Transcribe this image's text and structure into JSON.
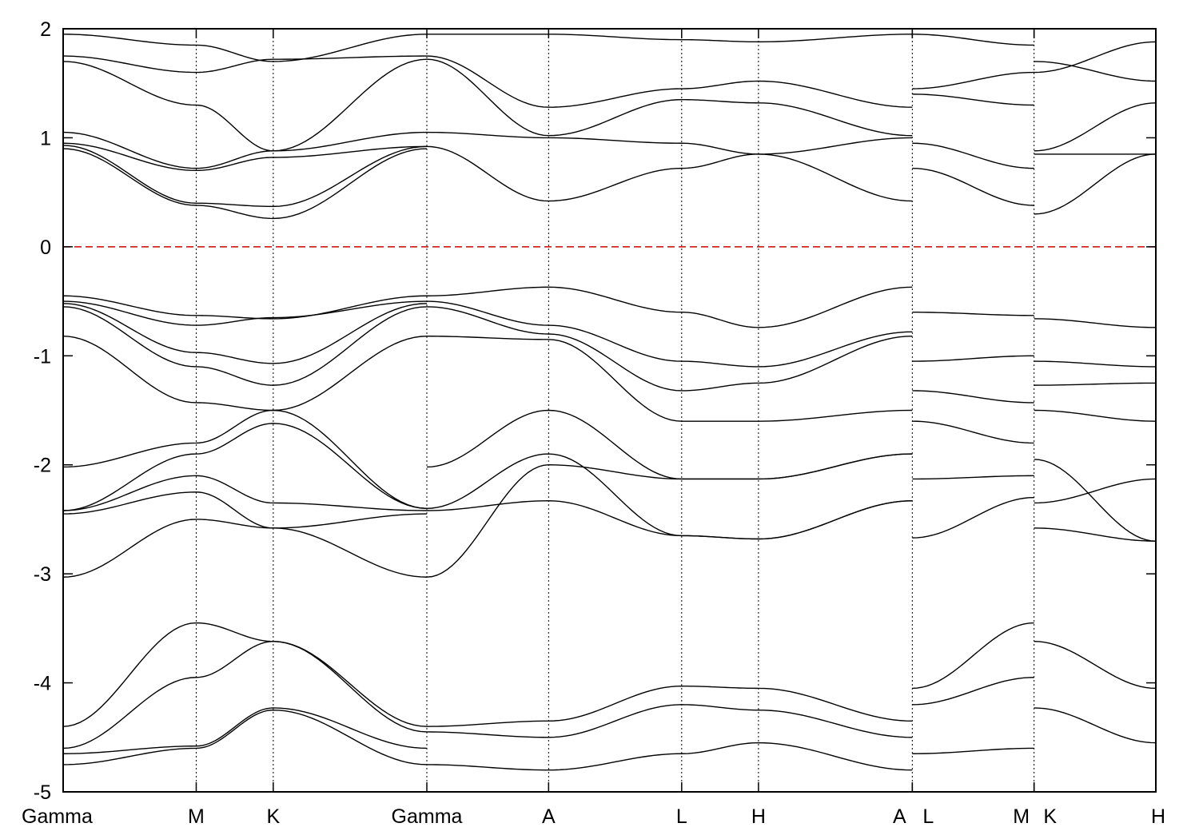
{
  "chart_data": {
    "type": "line",
    "title": "",
    "xlabel": "",
    "ylabel": "",
    "ylim": [
      -5,
      2
    ],
    "yticks": [
      "2",
      "1",
      "0",
      "-1",
      "-2",
      "-3",
      "-4",
      "-5"
    ],
    "ytick_values": [
      2,
      1,
      0,
      -1,
      -2,
      -3,
      -4,
      -5
    ],
    "fermi_level": 0,
    "fermi_color": "#d40000",
    "line_color": "#000000",
    "kpath": [
      {
        "label": "Gamma",
        "x": 0
      },
      {
        "label": "M",
        "x": 0.577
      },
      {
        "label": "K",
        "x": 0.911
      },
      {
        "label": "Gamma",
        "x": 1.577
      },
      {
        "label": "A",
        "x": 2.105
      },
      {
        "label": "L",
        "x": 2.682
      },
      {
        "label": "H",
        "x": 3.015
      },
      {
        "label": "A",
        "x": 3.682
      },
      {
        "label": "L",
        "x": 3.682
      },
      {
        "label": "M",
        "x": 4.21
      },
      {
        "label": "K",
        "x": 4.21
      },
      {
        "label": "H",
        "x": 4.738
      }
    ],
    "tick_labels": [
      "Gamma",
      "M",
      "K",
      "Gamma",
      "A",
      "L",
      "H",
      "A",
      "L",
      "M",
      "K",
      "H"
    ],
    "segments": [
      {
        "x_start": 0,
        "x_end": 1.577,
        "x": [
          0,
          0.577,
          0.911,
          1.577
        ],
        "bands": [
          [
            1.95,
            1.85,
            1.7,
            1.95
          ],
          [
            1.75,
            1.6,
            1.72,
            1.75
          ],
          [
            1.7,
            1.3,
            0.88,
            1.72
          ],
          [
            1.05,
            0.72,
            0.88,
            1.05
          ],
          [
            0.95,
            0.7,
            0.82,
            0.92
          ],
          [
            0.93,
            0.4,
            0.37,
            0.92
          ],
          [
            0.9,
            0.38,
            0.26,
            0.9
          ],
          [
            -0.45,
            -0.63,
            -0.66,
            -0.45
          ],
          [
            -0.5,
            -0.72,
            -0.65,
            -0.5
          ],
          [
            -0.52,
            -0.97,
            -1.07,
            -0.52
          ],
          [
            -0.55,
            -1.1,
            -1.27,
            -0.55
          ],
          [
            -0.82,
            -1.43,
            -1.5,
            -0.82
          ],
          [
            -2.02,
            -1.8,
            -1.5,
            -2.4
          ],
          [
            -2.42,
            -1.9,
            -1.62,
            -2.4
          ],
          [
            -2.42,
            -2.1,
            -2.35,
            -2.42
          ],
          [
            -2.45,
            -2.25,
            -2.58,
            -2.45
          ],
          [
            -3.03,
            -2.5,
            -2.58,
            -3.03
          ],
          [
            -4.4,
            -3.45,
            -3.62,
            -4.4
          ],
          [
            -4.6,
            -3.95,
            -3.62,
            -4.45
          ],
          [
            -4.65,
            -4.58,
            -4.23,
            -4.6
          ],
          [
            -4.75,
            -4.6,
            -4.25,
            -4.75
          ]
        ]
      },
      {
        "x_start": 1.577,
        "x_end": 3.682,
        "x": [
          1.577,
          2.105,
          2.682,
          3.015,
          3.682
        ],
        "bands": [
          [
            1.95,
            1.95,
            1.9,
            1.88,
            1.95
          ],
          [
            1.75,
            1.28,
            1.45,
            1.52,
            1.28
          ],
          [
            1.72,
            1.02,
            1.35,
            1.32,
            1.02
          ],
          [
            1.05,
            1.0,
            0.95,
            0.85,
            1.0
          ],
          [
            0.92,
            0.42,
            0.72,
            0.85,
            0.42
          ],
          [
            -0.45,
            -0.37,
            -0.6,
            -0.74,
            -0.37
          ],
          [
            -0.5,
            -0.72,
            -1.05,
            -1.1,
            -0.78
          ],
          [
            -0.55,
            -0.8,
            -1.32,
            -1.25,
            -0.82
          ],
          [
            -0.82,
            -0.85,
            -1.6,
            -1.6,
            -1.5
          ],
          [
            -2.02,
            -1.5,
            -2.13,
            -2.13,
            -1.9
          ],
          [
            -2.4,
            -1.9,
            -2.65,
            -2.68,
            -2.33
          ],
          [
            -2.42,
            -2.33,
            -2.65,
            -2.68,
            -2.33
          ],
          [
            -3.03,
            -2.0,
            -2.13,
            -2.13,
            -1.9
          ],
          [
            -4.4,
            -4.35,
            -4.03,
            -4.05,
            -4.35
          ],
          [
            -4.45,
            -4.5,
            -4.2,
            -4.25,
            -4.5
          ],
          [
            -4.75,
            -4.8,
            -4.65,
            -4.55,
            -4.8
          ]
        ]
      },
      {
        "x_start": 3.682,
        "x_end": 4.21,
        "x": [
          3.682,
          4.21
        ],
        "bands": [
          [
            1.95,
            1.85
          ],
          [
            1.45,
            1.6
          ],
          [
            1.4,
            1.3
          ],
          [
            0.95,
            0.72
          ],
          [
            0.72,
            0.38
          ],
          [
            -0.6,
            -0.63
          ],
          [
            -1.05,
            -1.0
          ],
          [
            -1.32,
            -1.43
          ],
          [
            -1.6,
            -1.8
          ],
          [
            -2.13,
            -2.1
          ],
          [
            -2.67,
            -2.3
          ],
          [
            -4.05,
            -3.45
          ],
          [
            -4.2,
            -3.95
          ],
          [
            -4.65,
            -4.6
          ]
        ]
      },
      {
        "x_start": 4.21,
        "x_end": 4.738,
        "x": [
          4.21,
          4.738
        ],
        "bands": [
          [
            1.6,
            1.88
          ],
          [
            1.7,
            1.52
          ],
          [
            0.88,
            1.32
          ],
          [
            0.85,
            0.85
          ],
          [
            0.3,
            0.85
          ],
          [
            -0.66,
            -0.74
          ],
          [
            -1.05,
            -1.1
          ],
          [
            -1.27,
            -1.25
          ],
          [
            -1.5,
            -1.6
          ],
          [
            -1.95,
            -2.7
          ],
          [
            -2.35,
            -2.13
          ],
          [
            -2.58,
            -2.7
          ],
          [
            -3.62,
            -4.05
          ],
          [
            -4.23,
            -4.55
          ]
        ]
      }
    ]
  }
}
